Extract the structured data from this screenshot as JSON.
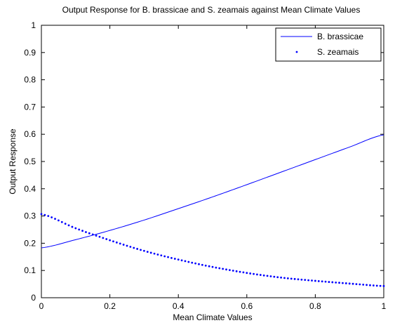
{
  "chart_data": {
    "type": "line",
    "title": "Output Response for B. brassicae and S. zeamais against Mean Climate Values",
    "xlabel": "Mean Climate Values",
    "ylabel": "Output Response",
    "xlim": [
      0,
      1
    ],
    "ylim": [
      0,
      1
    ],
    "xticks": [
      "0",
      "0.2",
      "0.4",
      "0.6",
      "0.8",
      "1"
    ],
    "yticks": [
      "0",
      "0.1",
      "0.2",
      "0.3",
      "0.4",
      "0.5",
      "0.6",
      "0.7",
      "0.8",
      "0.9",
      "1"
    ],
    "grid": false,
    "legend_position": "top-right",
    "series": [
      {
        "name": "B. brassicae",
        "style": "solid",
        "color": "#0000ff",
        "x": [
          0,
          0.1,
          0.2,
          0.3,
          0.4,
          0.5,
          0.6,
          0.7,
          0.8,
          0.9,
          1
        ],
        "y": [
          0.183,
          0.213,
          0.247,
          0.285,
          0.327,
          0.37,
          0.415,
          0.461,
          0.507,
          0.553,
          0.598
        ]
      },
      {
        "name": "S. zeamais",
        "style": "dotted",
        "color": "#0000ff",
        "x": [
          0,
          0.1,
          0.2,
          0.3,
          0.4,
          0.5,
          0.6,
          0.7,
          0.8,
          0.9,
          1
        ],
        "y": [
          0.307,
          0.255,
          0.211,
          0.172,
          0.14,
          0.113,
          0.091,
          0.074,
          0.062,
          0.052,
          0.043
        ]
      }
    ]
  }
}
